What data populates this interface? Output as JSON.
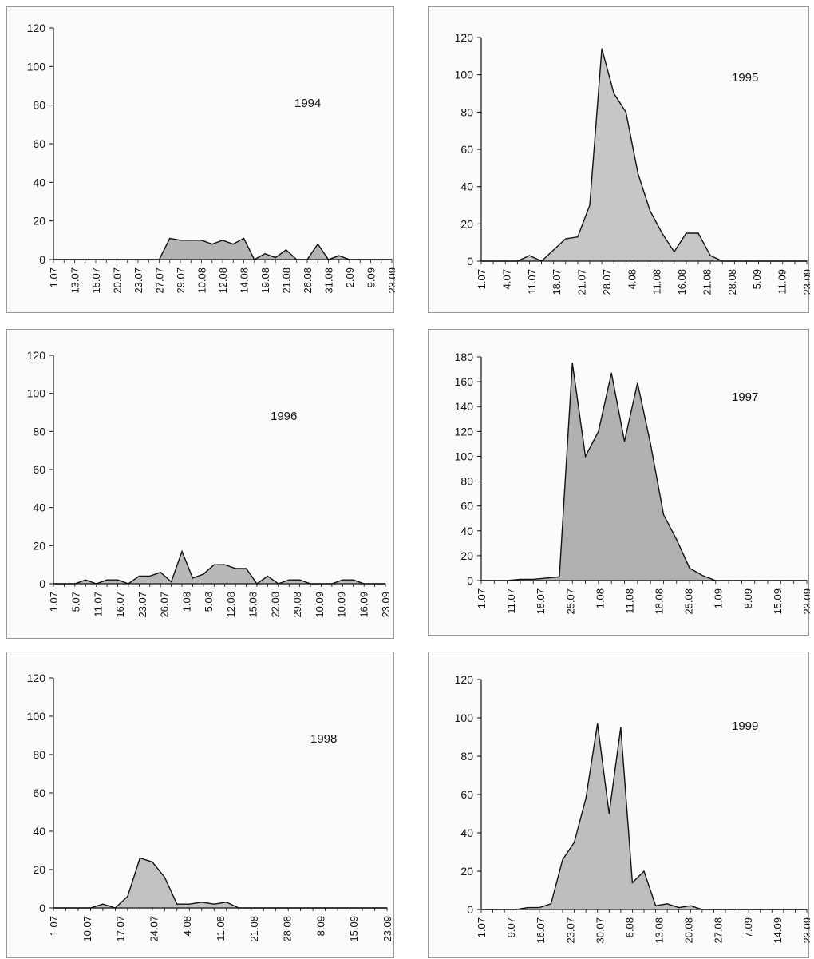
{
  "chart_data": [
    {
      "type": "area",
      "title": "1994",
      "ylim": [
        0,
        120
      ],
      "yticks": [
        0,
        20,
        40,
        60,
        80,
        100,
        120
      ],
      "xtick_labels": [
        "1.07",
        "13.07",
        "15.07",
        "20.07",
        "23.07",
        "27.07",
        "29.07",
        "10.08",
        "12.08",
        "14.08",
        "19.08",
        "21.08",
        "26.08",
        "31.08",
        "2.09",
        "9.09",
        "23.09"
      ],
      "x": [
        0,
        1,
        2,
        3,
        4,
        5,
        6,
        7,
        8,
        9,
        10,
        11,
        12,
        13,
        14,
        15,
        16,
        17,
        18,
        19,
        20,
        21,
        22,
        23,
        24,
        25,
        26,
        27,
        28,
        29,
        30,
        31,
        32
      ],
      "values": [
        0,
        0,
        0,
        0,
        0,
        0,
        0,
        0,
        0,
        0,
        0,
        11,
        10,
        10,
        10,
        8,
        10,
        8,
        11,
        0,
        3,
        1,
        5,
        0,
        0,
        8,
        0,
        2,
        0,
        0,
        0,
        0,
        0
      ],
      "fill": "#b4b4b4"
    },
    {
      "type": "area",
      "title": "1995",
      "ylim": [
        0,
        120
      ],
      "yticks": [
        0,
        20,
        40,
        60,
        80,
        100,
        120
      ],
      "xtick_labels": [
        "1.07",
        "4.07",
        "11.07",
        "18.07",
        "21.07",
        "28.07",
        "4.08",
        "11.08",
        "16.08",
        "21.08",
        "28.08",
        "5.09",
        "11.09",
        "23.09"
      ],
      "x": [
        0,
        1,
        2,
        3,
        4,
        5,
        6,
        7,
        8,
        9,
        10,
        11,
        12,
        13,
        14,
        15,
        16,
        17,
        18,
        19,
        20,
        21,
        22,
        23,
        24,
        25,
        26,
        27
      ],
      "values": [
        0,
        0,
        0,
        0,
        3,
        0,
        6,
        12,
        13,
        30,
        114,
        90,
        80,
        47,
        27,
        15,
        5,
        15,
        15,
        3,
        0,
        0,
        0,
        0,
        0,
        0,
        0,
        0
      ],
      "fill": "#c6c6c6"
    },
    {
      "type": "area",
      "title": "1996",
      "ylim": [
        0,
        120
      ],
      "yticks": [
        0,
        20,
        40,
        60,
        80,
        100,
        120
      ],
      "xtick_labels": [
        "1.07",
        "5.07",
        "11.07",
        "16.07",
        "23.07",
        "26.07",
        "1.08",
        "5.08",
        "12.08",
        "15.08",
        "22.08",
        "29.08",
        "10.09",
        "10.09",
        "16.09",
        "23.09"
      ],
      "x": [
        0,
        1,
        2,
        3,
        4,
        5,
        6,
        7,
        8,
        9,
        10,
        11,
        12,
        13,
        14,
        15,
        16,
        17,
        18,
        19,
        20,
        21,
        22,
        23,
        24,
        25,
        26,
        27,
        28,
        29,
        30,
        31
      ],
      "values": [
        0,
        0,
        0,
        2,
        0,
        2,
        2,
        0,
        4,
        4,
        6,
        1,
        17,
        3,
        5,
        10,
        10,
        8,
        8,
        0,
        4,
        0,
        2,
        2,
        0,
        0,
        0,
        2,
        2,
        0,
        0,
        0
      ],
      "fill": "#b8b8b8"
    },
    {
      "type": "area",
      "title": "1997",
      "ylim": [
        0,
        180
      ],
      "yticks": [
        0,
        20,
        40,
        60,
        80,
        100,
        120,
        140,
        160,
        180
      ],
      "xtick_labels": [
        "1.07",
        "11.07",
        "18.07",
        "25.07",
        "1.08",
        "11.08",
        "18.08",
        "25.08",
        "1.09",
        "8.09",
        "15.09",
        "23.09"
      ],
      "x": [
        0,
        1,
        2,
        3,
        4,
        5,
        6,
        7,
        8,
        9,
        10,
        11,
        12,
        13,
        14,
        15,
        16,
        17,
        18,
        19,
        20,
        21,
        22,
        23,
        24,
        25
      ],
      "values": [
        0,
        0,
        0,
        1,
        1,
        2,
        3,
        175,
        100,
        120,
        167,
        112,
        159,
        110,
        53,
        33,
        10,
        4,
        0,
        0,
        0,
        0,
        0,
        0,
        0,
        0
      ],
      "fill": "#b0b0b0"
    },
    {
      "type": "area",
      "title": "1998",
      "ylim": [
        0,
        120
      ],
      "yticks": [
        0,
        20,
        40,
        60,
        80,
        100,
        120
      ],
      "xtick_labels": [
        "1.07",
        "10.07",
        "17.07",
        "24.07",
        "4.08",
        "11.08",
        "21.08",
        "28.08",
        "8.09",
        "15.09",
        "23.09"
      ],
      "x": [
        0,
        1,
        2,
        3,
        4,
        5,
        6,
        7,
        8,
        9,
        10,
        11,
        12,
        13,
        14,
        15,
        16,
        17,
        18,
        19,
        20,
        21,
        22,
        23,
        24,
        25,
        26,
        27
      ],
      "values": [
        0,
        0,
        0,
        0,
        2,
        0,
        6,
        26,
        24,
        16,
        2,
        2,
        3,
        2,
        3,
        0,
        0,
        0,
        0,
        0,
        0,
        0,
        0,
        0,
        0,
        0,
        0,
        0
      ],
      "fill": "#c2c2c2"
    },
    {
      "type": "area",
      "title": "1999",
      "ylim": [
        0,
        120
      ],
      "yticks": [
        0,
        20,
        40,
        60,
        80,
        100,
        120
      ],
      "xtick_labels": [
        "1.07",
        "9.07",
        "16.07",
        "23.07",
        "30.07",
        "6.08",
        "13.08",
        "20.08",
        "27.08",
        "7.09",
        "14.09",
        "23.09"
      ],
      "x": [
        0,
        1,
        2,
        3,
        4,
        5,
        6,
        7,
        8,
        9,
        10,
        11,
        12,
        13,
        14,
        15,
        16,
        17,
        18,
        19,
        20,
        21,
        22,
        23,
        24,
        25,
        26,
        27,
        28
      ],
      "values": [
        0,
        0,
        0,
        0,
        1,
        1,
        3,
        26,
        35,
        58,
        97,
        50,
        95,
        14,
        20,
        2,
        3,
        1,
        2,
        0,
        0,
        0,
        0,
        0,
        0,
        0,
        0,
        0,
        0
      ],
      "fill": "#bebebe"
    }
  ]
}
